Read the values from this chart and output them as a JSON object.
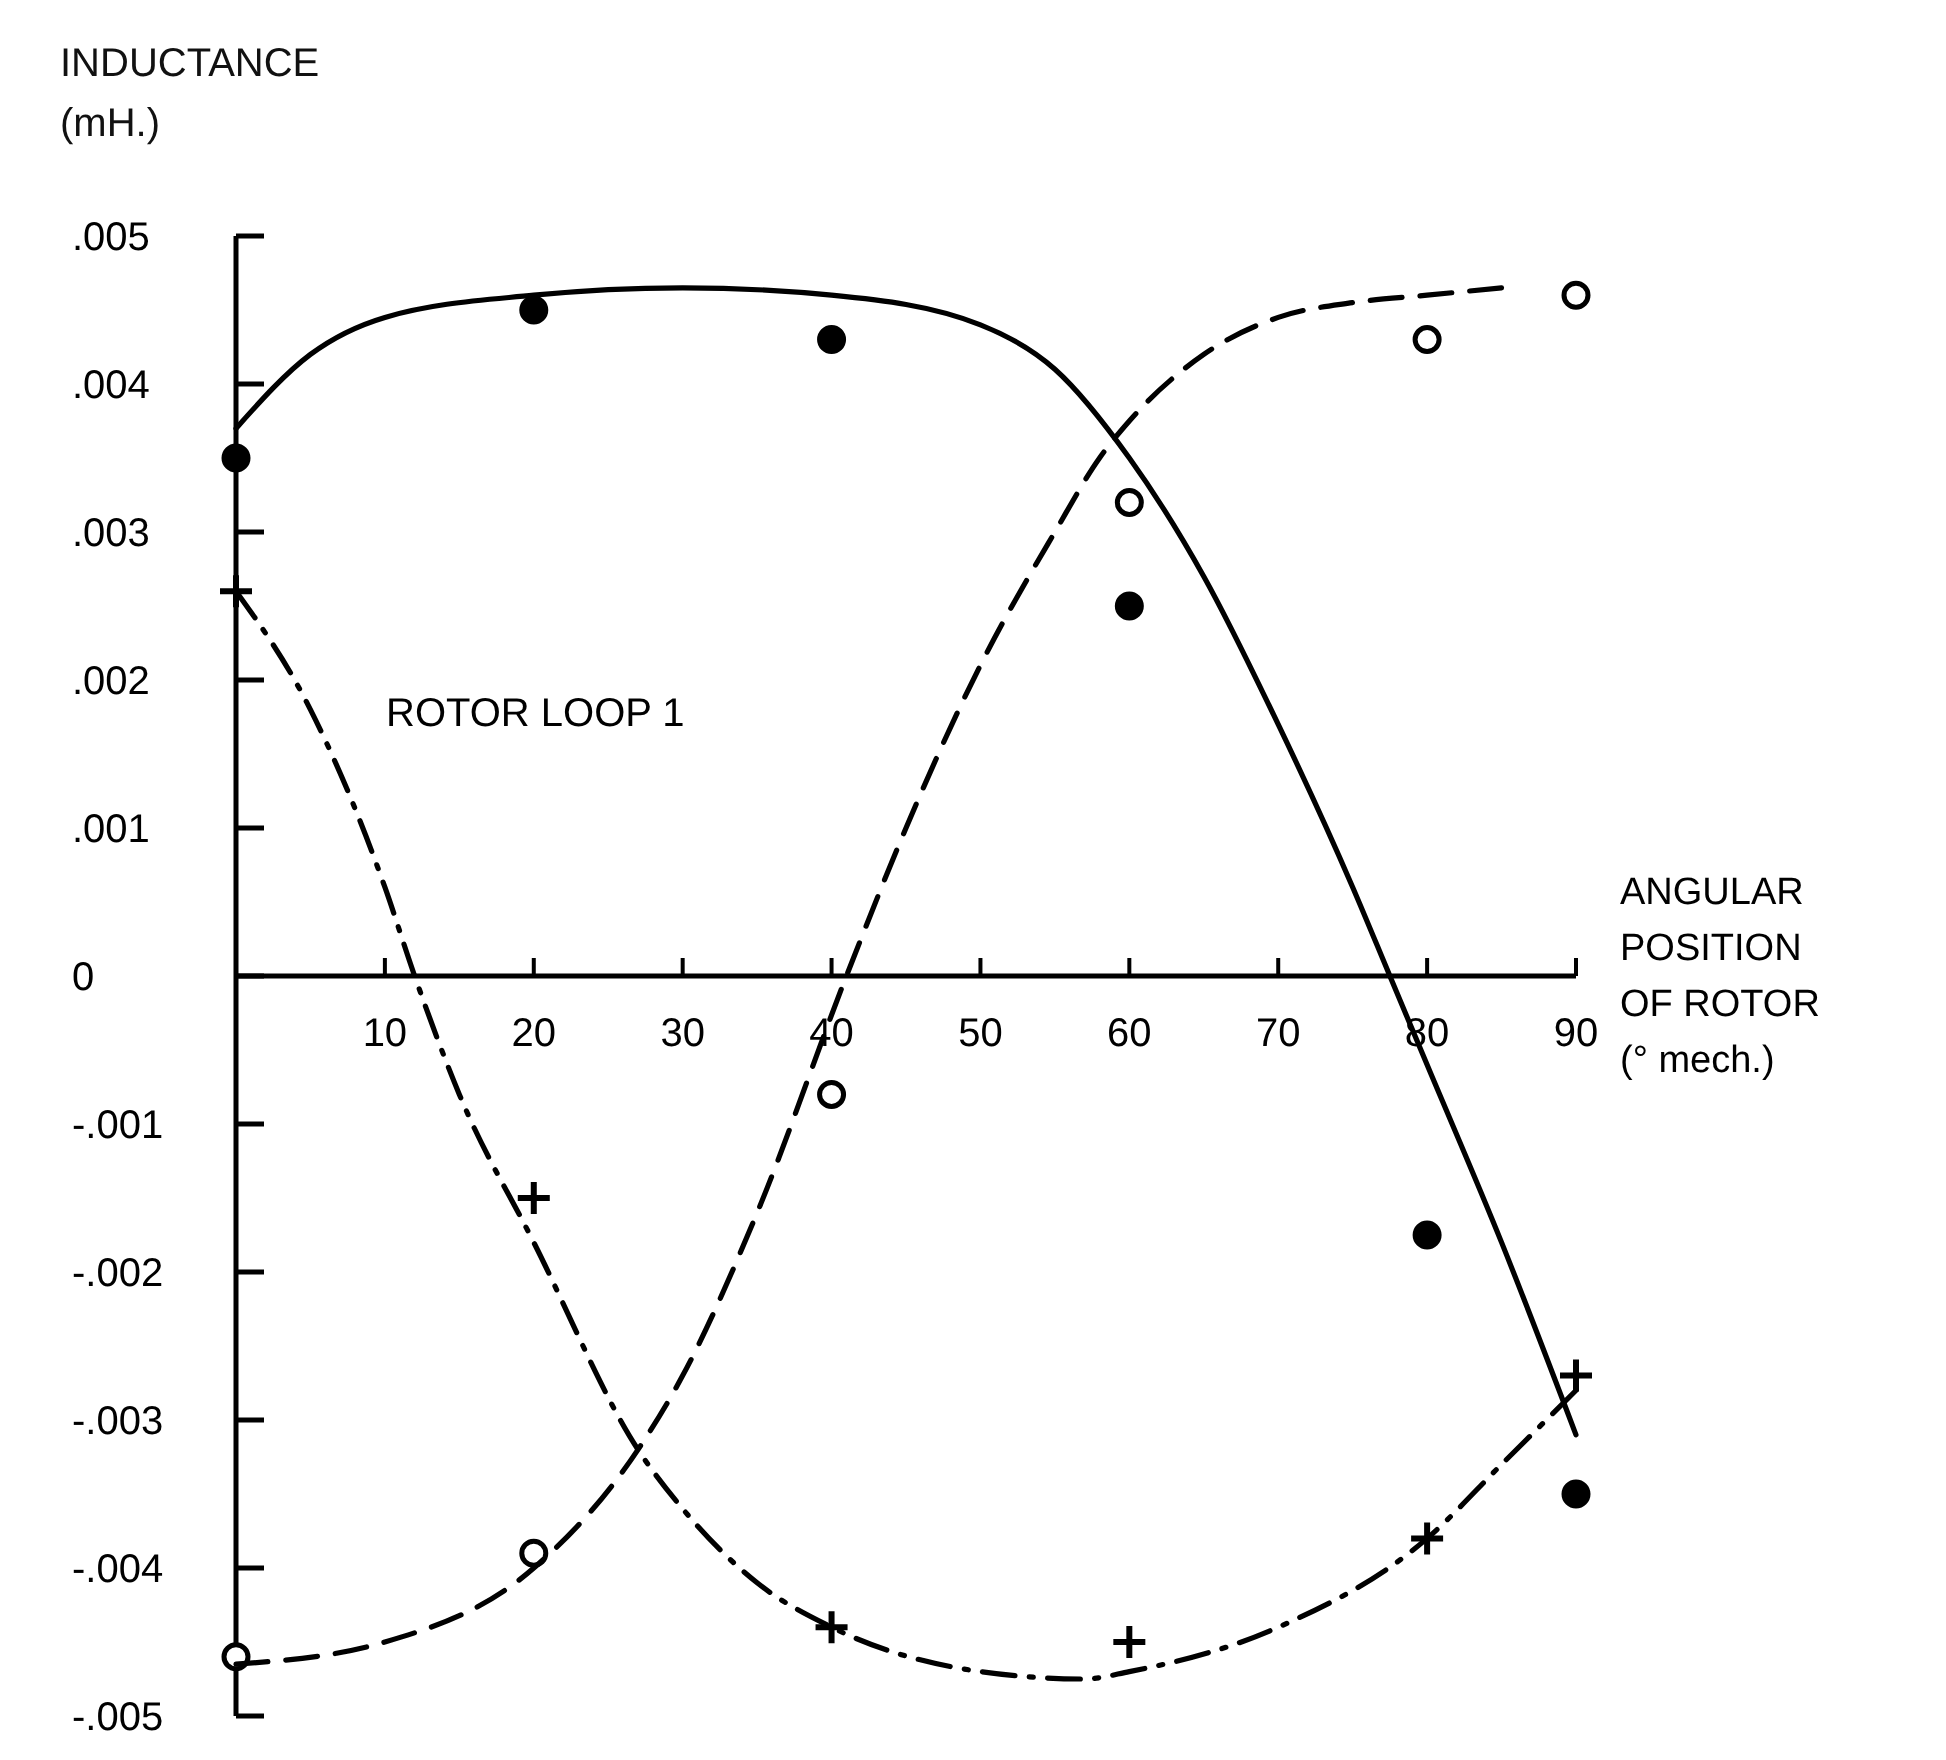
{
  "chart_data": {
    "type": "scatter",
    "ylabel": "INDUCTANCE\n(mH.)",
    "xlabel": "ANGULAR\nPOSITION\nOF ROTOR\n(° mech.)",
    "annotations": [
      "ROTOR LOOP 1"
    ],
    "xlim": [
      0,
      90
    ],
    "xticks": [
      10,
      20,
      30,
      40,
      50,
      60,
      70,
      80,
      90
    ],
    "ylim": [
      -0.005,
      0.005
    ],
    "yticks": [
      {
        "value": 0.005,
        "label": ".005"
      },
      {
        "value": 0.004,
        "label": ".004"
      },
      {
        "value": 0.003,
        "label": ".003"
      },
      {
        "value": 0.002,
        "label": ".002"
      },
      {
        "value": 0.001,
        "label": ".001"
      },
      0,
      {
        "value": -0.001,
        "label": "-.001"
      },
      {
        "value": -0.002,
        "label": "-.002"
      },
      {
        "value": -0.003,
        "label": "-.003"
      },
      {
        "value": -0.004,
        "label": "-.004"
      },
      {
        "value": -0.005,
        "label": "-.005"
      }
    ],
    "grid": false,
    "series": [
      {
        "marker": "circle",
        "color": "#000000",
        "x": [
          0,
          20,
          40,
          60,
          80,
          90
        ],
        "values": [
          0.0035,
          0.0045,
          0.0043,
          0.0025,
          -0.00175,
          -0.0035
        ]
      },
      {
        "marker": "circle",
        "color": "#ffffff",
        "x": [
          0,
          20,
          40,
          60,
          80,
          90
        ],
        "values": [
          -0.0046,
          -0.0039,
          -0.0008,
          0.0032,
          0.0043,
          0.0046
        ]
      },
      {
        "marker": "cross",
        "color": "#000000",
        "x": [
          0,
          20,
          40,
          60,
          80,
          90
        ],
        "values": [
          0.0026,
          -0.0015,
          -0.0044,
          -0.0045,
          -0.0038,
          -0.0027
        ]
      },
      {
        "type": "line",
        "marker": "none",
        "line_style": "solid",
        "color": "#000000",
        "x": [
          0,
          5,
          10,
          20,
          30,
          40,
          50,
          55,
          60,
          65,
          70,
          75,
          77.5,
          80,
          85,
          90
        ],
        "values": [
          0.0037,
          0.0042,
          0.00445,
          0.0046,
          0.00465,
          0.0046,
          0.0044,
          0.0041,
          0.0035,
          0.0027,
          0.0017,
          0.0006,
          0,
          -0.0006,
          -0.0018,
          -0.0031
        ]
      },
      {
        "type": "line",
        "marker": "none",
        "line_style": "dashed",
        "color": "#000000",
        "x": [
          0,
          10,
          20,
          27,
          30,
          35,
          41,
          45,
          50,
          55,
          58,
          60,
          65,
          70,
          75,
          80,
          85
        ],
        "values": [
          -0.00465,
          -0.0045,
          -0.004,
          -0.0032,
          -0.0027,
          -0.0016,
          0,
          0.001,
          0.0021,
          0.003,
          0.0035,
          0.00375,
          0.0042,
          0.00445,
          0.00455,
          0.0046,
          0.00465
        ]
      },
      {
        "type": "line",
        "marker": "none",
        "line_style": "dashdot",
        "color": "#000000",
        "x": [
          0,
          5,
          10,
          12,
          15,
          20,
          27,
          30,
          35,
          40,
          50,
          57,
          60,
          70,
          80,
          85,
          90
        ],
        "values": [
          0.0026,
          0.0018,
          0.0006,
          0,
          -0.0008,
          -0.0018,
          -0.0032,
          -0.0036,
          -0.0041,
          -0.0044,
          -0.0047,
          -0.00475,
          -0.0047,
          -0.0044,
          -0.0038,
          -0.0033,
          -0.0028
        ]
      }
    ]
  }
}
